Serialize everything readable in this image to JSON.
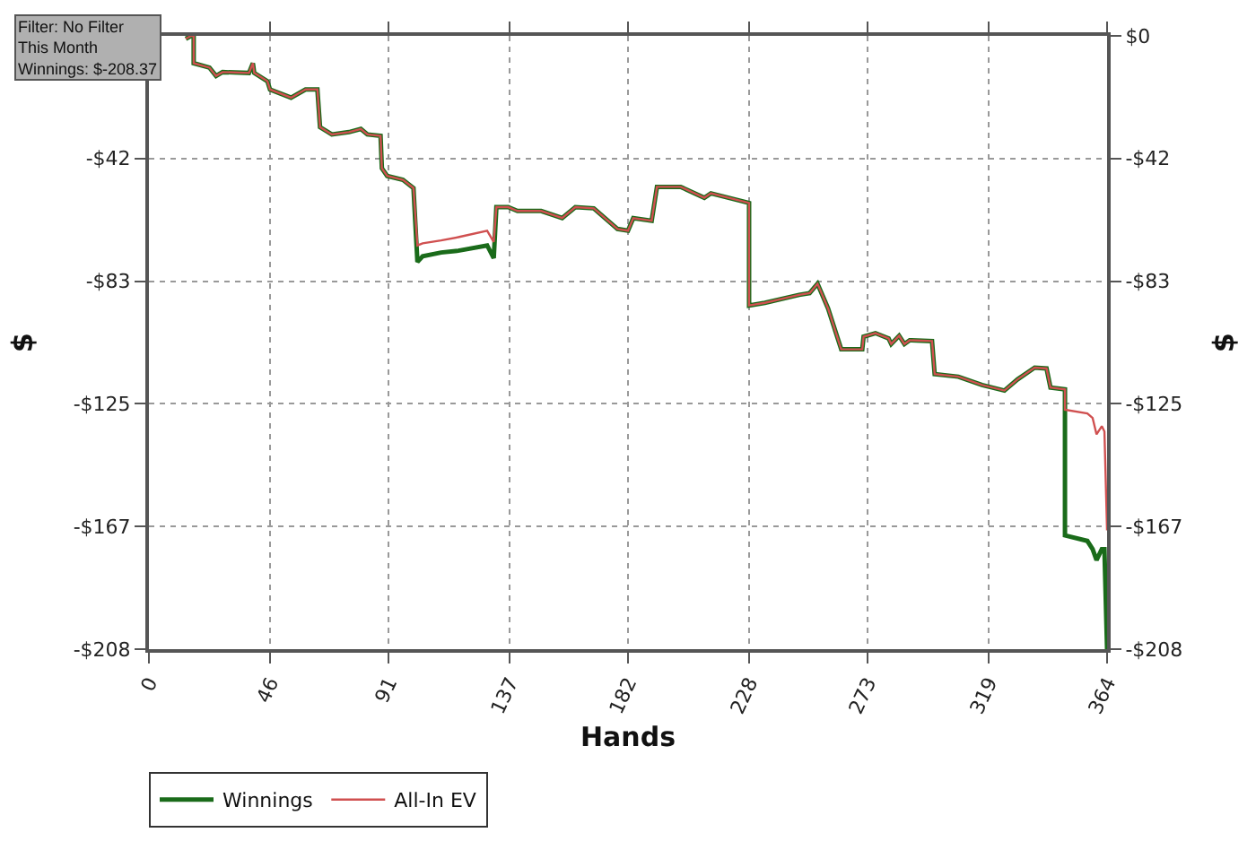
{
  "chart_data": {
    "type": "line",
    "xlabel": "Hands",
    "ylabel": "$",
    "y2label": "$",
    "annotations": [
      "Filter: No Filter",
      "This Month",
      "Winnings: $-208.37"
    ],
    "x": [
      14,
      16,
      17,
      17,
      23,
      25.5,
      28,
      38,
      39.5,
      40,
      45,
      46,
      54,
      59.5,
      64,
      65,
      69.5,
      76,
      80.5,
      83,
      88,
      88.5,
      90.5,
      96.5,
      100.5,
      102,
      104,
      111,
      117.5,
      128.5,
      131,
      132,
      136.5,
      140,
      149,
      157,
      162,
      169,
      178,
      182,
      184,
      191,
      193,
      202,
      211,
      213.5,
      226,
      228,
      228,
      234,
      247,
      251,
      254,
      258,
      263,
      271,
      271.5,
      276,
      281,
      282,
      285,
      287,
      289,
      297.5,
      298.5,
      307.5,
      316.5,
      325,
      330,
      336.5,
      341,
      342.5,
      348,
      348,
      356.5,
      358.5,
      360,
      362,
      363,
      364
    ],
    "series": [
      {
        "name": "Winnings",
        "color": "#1a6b1a",
        "values": [
          -1,
          0,
          0,
          -9.3,
          -10.8,
          -13.6,
          -12.3,
          -12.6,
          -9.3,
          -12.6,
          -15.4,
          -18.2,
          -21,
          -18.2,
          -18.2,
          -31,
          -33.5,
          -32.7,
          -31.6,
          -33.5,
          -34,
          -45,
          -47.6,
          -48.9,
          -51.7,
          -76.8,
          -74.9,
          -73.6,
          -73,
          -71.2,
          -75.5,
          -58.2,
          -58.2,
          -59.5,
          -59.5,
          -61.9,
          -58.2,
          -58.6,
          -65.6,
          -66.2,
          -61.9,
          -62.8,
          -51.3,
          -51.3,
          -55,
          -53.5,
          -56.3,
          -56.8,
          -91.6,
          -90.7,
          -88,
          -87.4,
          -84.2,
          -92.6,
          -106.5,
          -106.5,
          -102.2,
          -101,
          -102.8,
          -104.7,
          -101.9,
          -104.7,
          -103.4,
          -103.7,
          -114.9,
          -115.8,
          -118.6,
          -120.5,
          -116.7,
          -112.7,
          -113,
          -119.5,
          -120.1,
          -169.7,
          -171.6,
          -174.4,
          -178.1,
          -174.4,
          -174.4,
          -208.37
        ]
      },
      {
        "name": "All-In EV",
        "color": "#d05050",
        "values": [
          -1,
          0,
          0,
          -9.3,
          -10.8,
          -13.6,
          -12.3,
          -12.6,
          -9.3,
          -12.6,
          -15.4,
          -18.2,
          -21,
          -18.2,
          -18.2,
          -31,
          -33.5,
          -32.7,
          -31.6,
          -33.5,
          -34,
          -45,
          -47.6,
          -48.9,
          -51.7,
          -71.2,
          -70.5,
          -69.5,
          -68.4,
          -66.2,
          -70,
          -58.2,
          -58.2,
          -59.5,
          -59.5,
          -61.9,
          -58.2,
          -58.6,
          -65.6,
          -66.2,
          -61.9,
          -62.8,
          -51.3,
          -51.3,
          -55,
          -53.5,
          -56.3,
          -56.8,
          -91.6,
          -90.7,
          -88,
          -87.4,
          -84.2,
          -92.6,
          -106.5,
          -106.5,
          -102.2,
          -101,
          -102.8,
          -104.7,
          -101.9,
          -104.7,
          -103.4,
          -103.7,
          -114.9,
          -115.8,
          -118.6,
          -120.5,
          -116.7,
          -112.7,
          -113,
          -119.5,
          -120.1,
          -127,
          -128.3,
          -129.8,
          -135.4,
          -132.6,
          -134.4,
          -168
        ]
      }
    ],
    "xlim": [
      0,
      364
    ],
    "xticks": [
      0,
      46,
      91,
      137,
      182,
      228,
      273,
      319,
      364
    ],
    "ylim": [
      -208.37,
      0
    ],
    "yticks": [
      {
        "value": 0,
        "label": null
      },
      {
        "value": -41.67,
        "label": "-$42"
      },
      {
        "value": -83.35,
        "label": "-$83"
      },
      {
        "value": -125.02,
        "label": "-$125"
      },
      {
        "value": -166.7,
        "label": "-$167"
      },
      {
        "value": -208.37,
        "label": "-$208"
      }
    ],
    "y2lim": [
      -208.37,
      0
    ],
    "y2ticks": [
      {
        "value": 0,
        "label": "$0"
      },
      {
        "value": -41.67,
        "label": "-$42"
      },
      {
        "value": -83.35,
        "label": "-$83"
      },
      {
        "value": -125.02,
        "label": "-$125"
      },
      {
        "value": -166.7,
        "label": "-$167"
      },
      {
        "value": -208.37,
        "label": "-$208"
      }
    ],
    "grid": true,
    "legend": "bottom left",
    "line_style": "solid"
  }
}
